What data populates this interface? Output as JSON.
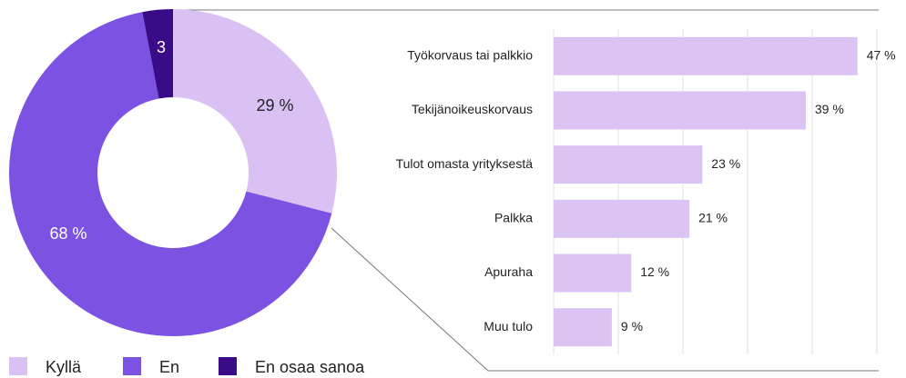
{
  "chart_data": [
    {
      "type": "donut",
      "categories": [
        "Kyllä",
        "En",
        "En osaa sanoa"
      ],
      "values": [
        29,
        68,
        3
      ],
      "value_labels": [
        "29 %",
        "68 %",
        "3"
      ],
      "colors": [
        "#d9c2f3",
        "#7c52e3",
        "#3a0b86"
      ],
      "legend": "bottom-left"
    },
    {
      "type": "hbar",
      "categories": [
        "Työkorvaus tai palkkio",
        "Tekijänoikeuskorvaus",
        "Tulot omasta yrityksestä",
        "Palkka",
        "Apuraha",
        "Muu tulo"
      ],
      "values": [
        47,
        39,
        23,
        21,
        12,
        9
      ],
      "value_labels": [
        "47 %",
        "39 %",
        "23 %",
        "21 %",
        "12 %",
        "9 %"
      ],
      "color": "#dbc3f4",
      "xlim": [
        0,
        50
      ],
      "xticks": [
        0,
        10,
        20,
        30,
        40,
        50
      ],
      "grid": true
    }
  ]
}
